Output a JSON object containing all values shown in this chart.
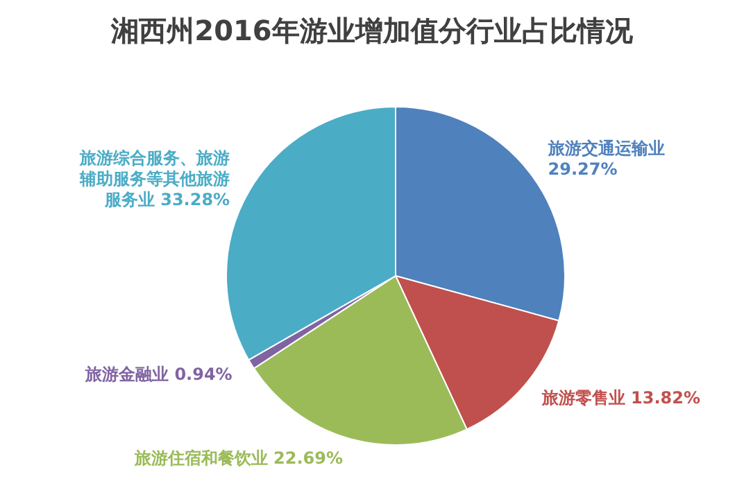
{
  "chart_data": {
    "type": "pie",
    "title": "湘西州2016年游业增加值分行业占比情况",
    "categories": [
      "旅游交通运输业",
      "旅游零售业",
      "旅游住宿和餐饮业",
      "旅游金融业",
      "旅游综合服务、旅游辅助服务等其他旅游服务业"
    ],
    "values": [
      29.27,
      13.82,
      22.69,
      0.94,
      33.28
    ],
    "value_labels": [
      "29.27%",
      "13.82%",
      "22.69%",
      "0.94%",
      "33.28%"
    ],
    "colors": [
      "#4f81bd",
      "#c0504d",
      "#9bbb59",
      "#8064a2",
      "#4bacc6"
    ]
  }
}
